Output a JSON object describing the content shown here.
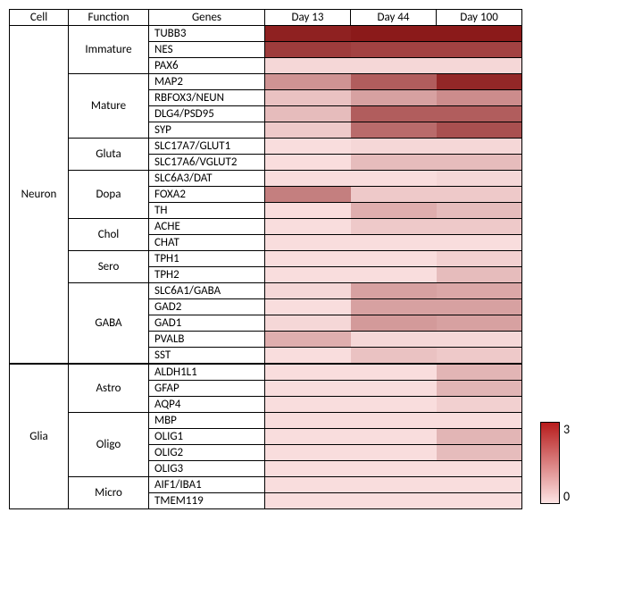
{
  "columns": {
    "cell": "Cell",
    "func": "Function",
    "genes": "Genes",
    "days": [
      "Day 13",
      "Day 44",
      "Day 100"
    ]
  },
  "legend": {
    "max": "3",
    "min": "0"
  },
  "scale": {
    "min": 0,
    "max": 3,
    "low_color": "#fde4e4",
    "high_color": "#8b1a1a"
  },
  "cells": [
    {
      "name": "Neuron",
      "functions": [
        {
          "name": "Immature",
          "genes": [
            {
              "name": "TUBB3",
              "vals": [
                2.9,
                3.0,
                3.0
              ]
            },
            {
              "name": "NES",
              "vals": [
                2.5,
                2.4,
                2.4
              ]
            },
            {
              "name": "PAX6",
              "vals": [
                0.2,
                0.2,
                0.2
              ]
            }
          ]
        },
        {
          "name": "Mature",
          "genes": [
            {
              "name": "MAP2",
              "vals": [
                1.2,
                2.0,
                2.8
              ]
            },
            {
              "name": "RBFOX3/NEUN",
              "vals": [
                0.5,
                1.0,
                1.3
              ]
            },
            {
              "name": "DLG4/PSD95",
              "vals": [
                0.6,
                2.0,
                2.0
              ]
            },
            {
              "name": "SYP",
              "vals": [
                0.4,
                1.8,
                2.2
              ]
            }
          ]
        },
        {
          "name": "Gluta",
          "genes": [
            {
              "name": "SLC17A7/GLUT1",
              "vals": [
                0.1,
                0.2,
                0.2
              ]
            },
            {
              "name": "SLC17A6/VGLUT2",
              "vals": [
                0.1,
                0.6,
                0.6
              ]
            }
          ]
        },
        {
          "name": "Dopa",
          "genes": [
            {
              "name": "SLC6A3/DAT",
              "vals": [
                0.1,
                0.1,
                0.2
              ]
            },
            {
              "name": "FOXA2",
              "vals": [
                1.5,
                0.4,
                0.4
              ]
            },
            {
              "name": "TH",
              "vals": [
                0.1,
                0.8,
                0.6
              ]
            }
          ]
        },
        {
          "name": "Chol",
          "genes": [
            {
              "name": "ACHE",
              "vals": [
                0.1,
                0.4,
                0.4
              ]
            },
            {
              "name": "CHAT",
              "vals": [
                0.1,
                0.1,
                0.1
              ]
            }
          ]
        },
        {
          "name": "Sero",
          "genes": [
            {
              "name": "TPH1",
              "vals": [
                0.1,
                0.1,
                0.3
              ]
            },
            {
              "name": "TPH2",
              "vals": [
                0.1,
                0.1,
                0.6
              ]
            }
          ]
        },
        {
          "name": "GABA",
          "genes": [
            {
              "name": "SLC6A1/GABA",
              "vals": [
                0.2,
                1.0,
                0.9
              ]
            },
            {
              "name": "GAD2",
              "vals": [
                0.1,
                1.0,
                1.0
              ]
            },
            {
              "name": "GAD1",
              "vals": [
                0.2,
                1.1,
                1.0
              ]
            },
            {
              "name": "PVALB",
              "vals": [
                0.8,
                0.2,
                0.2
              ]
            },
            {
              "name": "SST",
              "vals": [
                0.1,
                0.5,
                0.4
              ]
            }
          ]
        }
      ]
    },
    {
      "name": "Glia",
      "functions": [
        {
          "name": "Astro",
          "genes": [
            {
              "name": "ALDH1L1",
              "vals": [
                0.1,
                0.1,
                0.7
              ]
            },
            {
              "name": "GFAP",
              "vals": [
                0.1,
                0.1,
                0.7
              ]
            },
            {
              "name": "AQP4",
              "vals": [
                0.1,
                0.1,
                0.3
              ]
            }
          ]
        },
        {
          "name": "Oligo",
          "genes": [
            {
              "name": "MBP",
              "vals": [
                0.1,
                0.1,
                0.1
              ]
            },
            {
              "name": "OLIG1",
              "vals": [
                0.1,
                0.1,
                0.7
              ]
            },
            {
              "name": "OLIG2",
              "vals": [
                0.1,
                0.1,
                0.6
              ]
            },
            {
              "name": "OLIG3",
              "vals": [
                0.1,
                0.1,
                0.1
              ]
            }
          ]
        },
        {
          "name": "Micro",
          "genes": [
            {
              "name": "AIF1/IBA1",
              "vals": [
                0.1,
                0.1,
                0.1
              ]
            },
            {
              "name": "TMEM119",
              "vals": [
                0.1,
                0.1,
                0.1
              ]
            }
          ]
        }
      ]
    }
  ]
}
